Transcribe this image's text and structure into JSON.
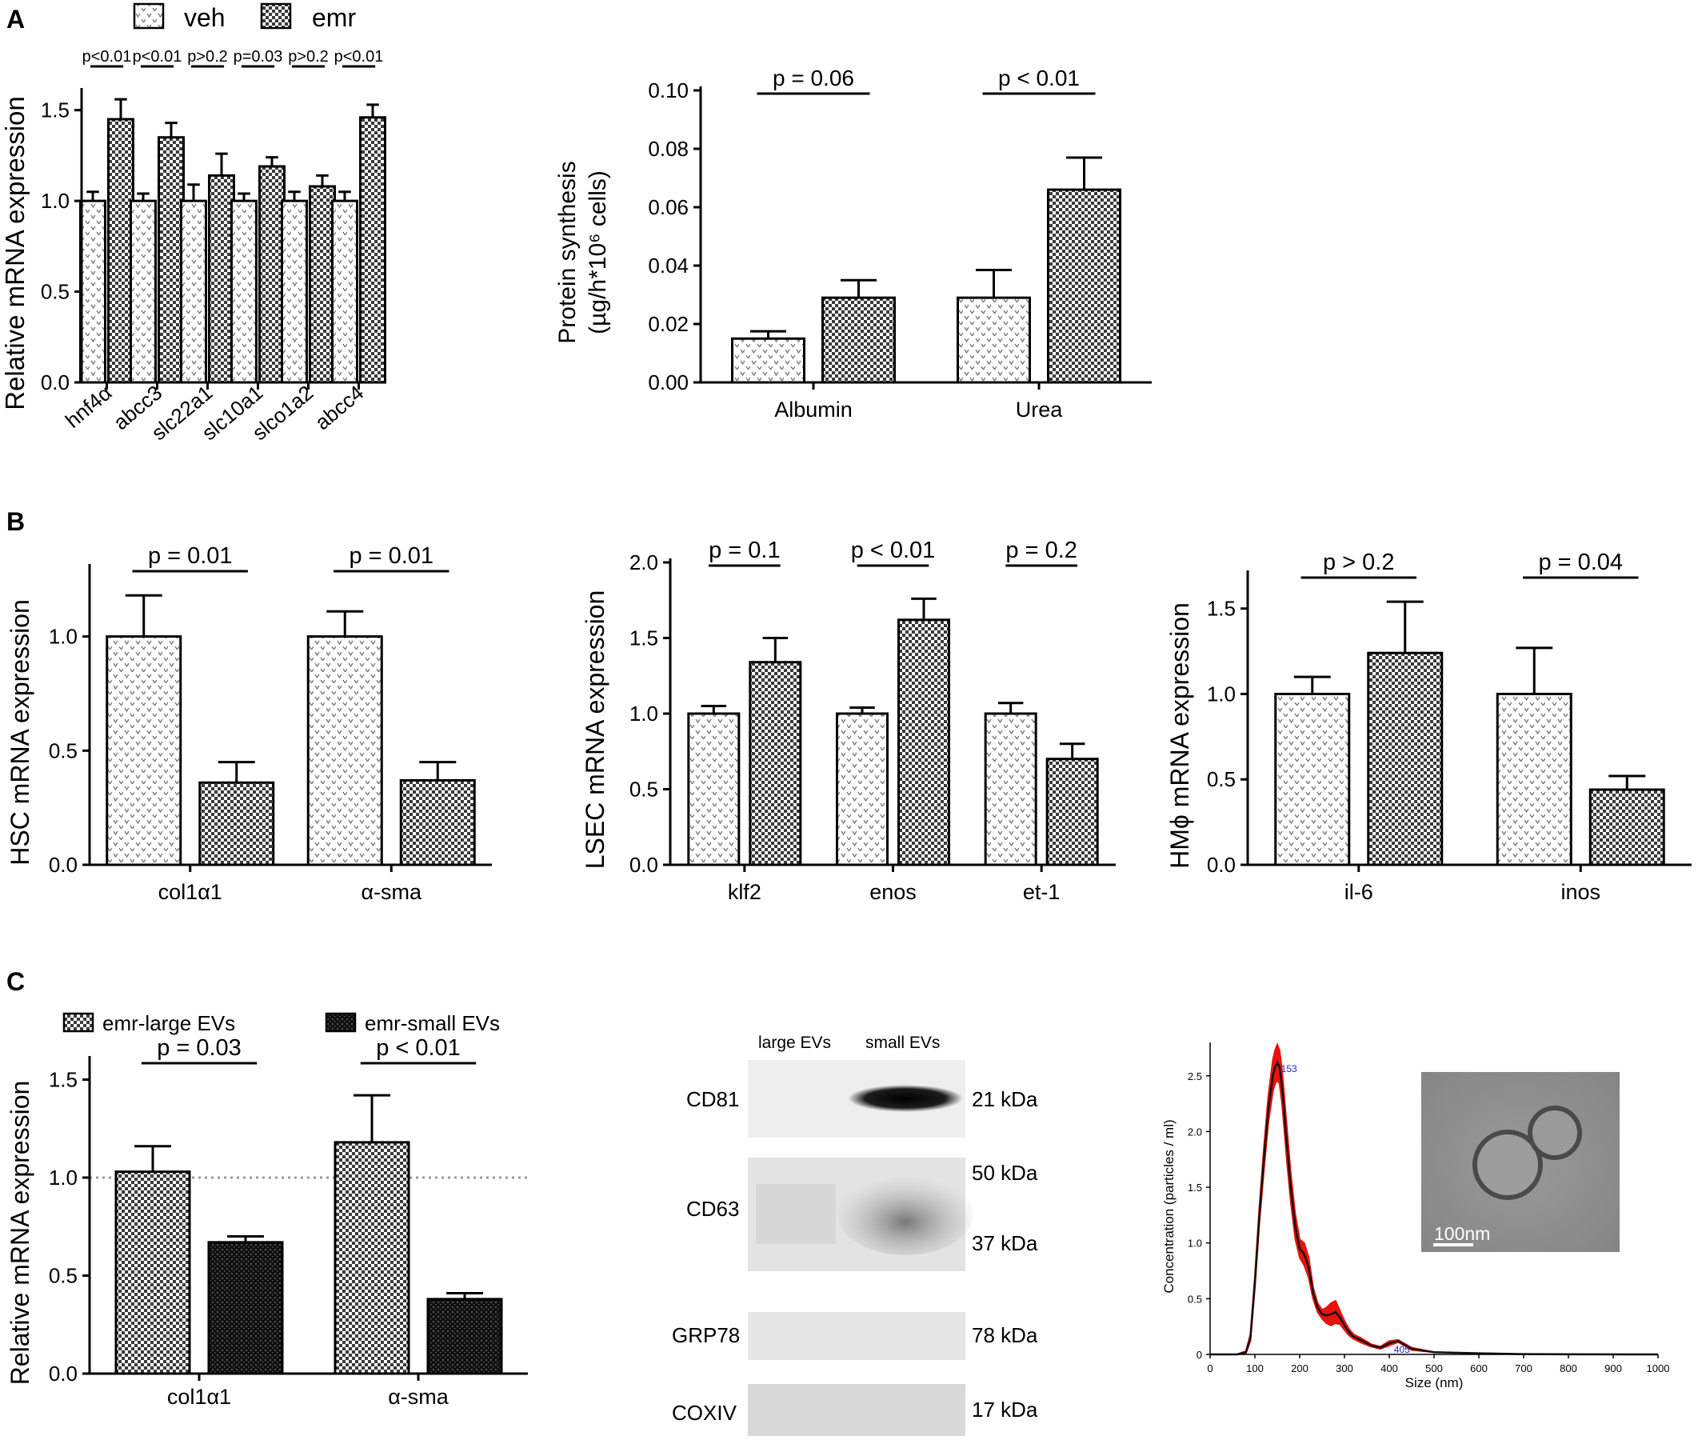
{
  "panel_labels": [
    "A",
    "B",
    "C"
  ],
  "legend_a": {
    "veh": "veh",
    "emr": "emr"
  },
  "legend_c": {
    "large": "emr-large EVs",
    "small": "emr-small EVs"
  },
  "chart_data": [
    {
      "id": "A1",
      "type": "bar",
      "ylabel": "Relative mRNA expression",
      "ylim": [
        0,
        1.6
      ],
      "yticks": [
        0.0,
        0.5,
        1.0,
        1.5
      ],
      "tick_labels": [
        "0.0",
        "0.5",
        "1.0",
        "1.5"
      ],
      "categories": [
        "hnf4α",
        "abcc3",
        "slc22a1",
        "slc10a1",
        "slco1a2",
        "abcc4"
      ],
      "series": [
        {
          "name": "veh",
          "values": [
            1.0,
            1.0,
            1.0,
            1.0,
            1.0,
            1.0
          ],
          "errors": [
            0.05,
            0.04,
            0.09,
            0.04,
            0.05,
            0.05
          ]
        },
        {
          "name": "emr",
          "values": [
            1.45,
            1.35,
            1.14,
            1.19,
            1.08,
            1.46
          ],
          "errors": [
            0.11,
            0.08,
            0.12,
            0.05,
            0.06,
            0.07
          ]
        }
      ],
      "pvalues": [
        "p<0.01",
        "p<0.01",
        "p>0.2",
        "p=0.03",
        "p>0.2",
        "p<0.01"
      ]
    },
    {
      "id": "A2",
      "type": "bar",
      "ylabel": "Protein synthesis",
      "ylabel2": "(µg/h*10⁶ cells)",
      "ylim": [
        0,
        0.1
      ],
      "yticks": [
        0,
        0.02,
        0.04,
        0.06,
        0.08,
        0.1
      ],
      "tick_labels": [
        "0.00",
        "0.02",
        "0.04",
        "0.06",
        "0.08",
        "0.10"
      ],
      "categories": [
        "Albumin",
        "Urea"
      ],
      "series": [
        {
          "name": "veh",
          "values": [
            0.015,
            0.029
          ],
          "errors": [
            0.0025,
            0.0095
          ]
        },
        {
          "name": "emr",
          "values": [
            0.029,
            0.066
          ],
          "errors": [
            0.006,
            0.011
          ]
        }
      ],
      "pvalues": [
        "p = 0.06",
        "p < 0.01"
      ]
    },
    {
      "id": "B1",
      "type": "bar",
      "ylabel": "HSC mRNA expression",
      "ylim": [
        0,
        1.3
      ],
      "yticks": [
        0,
        0.5,
        1.0
      ],
      "tick_labels": [
        "0.0",
        "0.5",
        "1.0"
      ],
      "categories": [
        "col1α1",
        "α-sma"
      ],
      "series": [
        {
          "name": "veh",
          "values": [
            1.0,
            1.0
          ],
          "errors": [
            0.18,
            0.11
          ]
        },
        {
          "name": "emr",
          "values": [
            0.36,
            0.37
          ],
          "errors": [
            0.09,
            0.08
          ]
        }
      ],
      "pvalues": [
        "p = 0.01",
        "p = 0.01"
      ]
    },
    {
      "id": "B2",
      "type": "bar",
      "ylabel": "LSEC mRNA expression",
      "ylim": [
        0,
        2.0
      ],
      "yticks": [
        0,
        0.5,
        1.0,
        1.5,
        2.0
      ],
      "tick_labels": [
        "0.0",
        "0.5",
        "1.0",
        "1.5",
        "2.0"
      ],
      "categories": [
        "klf2",
        "enos",
        "et-1"
      ],
      "series": [
        {
          "name": "veh",
          "values": [
            1.0,
            1.0,
            1.0
          ],
          "errors": [
            0.05,
            0.04,
            0.07
          ]
        },
        {
          "name": "emr",
          "values": [
            1.34,
            1.62,
            0.7
          ],
          "errors": [
            0.16,
            0.14,
            0.1
          ]
        }
      ],
      "pvalues": [
        "p = 0.1",
        "p < 0.01",
        "p = 0.2"
      ]
    },
    {
      "id": "B3",
      "type": "bar",
      "ylabel": "HMϕ mRNA expression",
      "ylim": [
        0,
        1.7
      ],
      "yticks": [
        0,
        0.5,
        1.0,
        1.5
      ],
      "tick_labels": [
        "0.0",
        "0.5",
        "1.0",
        "1.5"
      ],
      "categories": [
        "il-6",
        "inos"
      ],
      "series": [
        {
          "name": "veh",
          "values": [
            1.0,
            1.0
          ],
          "errors": [
            0.1,
            0.27
          ]
        },
        {
          "name": "emr",
          "values": [
            1.24,
            0.44
          ],
          "errors": [
            0.3,
            0.08
          ]
        }
      ],
      "pvalues": [
        "p > 0.2",
        "p = 0.04"
      ]
    },
    {
      "id": "C1",
      "type": "bar",
      "ylabel": "Relative mRNA expression",
      "ylim": [
        0,
        1.6
      ],
      "yticks": [
        0,
        0.5,
        1.0,
        1.5
      ],
      "tick_labels": [
        "0.0",
        "0.5",
        "1.0",
        "1.5"
      ],
      "reference_line": 1.0,
      "categories": [
        "col1α1",
        "α-sma"
      ],
      "series": [
        {
          "name": "emr-large EVs",
          "values": [
            1.03,
            1.18
          ],
          "errors": [
            0.13,
            0.24
          ]
        },
        {
          "name": "emr-small EVs",
          "values": [
            0.67,
            0.38
          ],
          "errors": [
            0.03,
            0.03
          ]
        }
      ],
      "pvalues": [
        "p = 0.03",
        "p < 0.01"
      ]
    },
    {
      "id": "C3",
      "type": "line",
      "xlabel": "Size (nm)",
      "ylabel": "Concentration (particles / ml)",
      "xlim": [
        0,
        1000
      ],
      "ylim": [
        0,
        2.8
      ],
      "xticks": [
        0,
        100,
        200,
        300,
        400,
        500,
        600,
        700,
        800,
        900,
        1000
      ],
      "xtick_labels": [
        "0",
        "100",
        "200",
        "300",
        "400",
        "500",
        "600",
        "700",
        "800",
        "900",
        "1000"
      ],
      "yticks": [
        0,
        0.5,
        1,
        1.5,
        2,
        2.5
      ],
      "ytick_labels": [
        "0",
        "0.5",
        "1.0",
        "1.5",
        "2.0",
        "2.5"
      ],
      "x": [
        0,
        60,
        80,
        90,
        100,
        110,
        120,
        130,
        140,
        145,
        150,
        155,
        160,
        165,
        170,
        180,
        190,
        200,
        210,
        220,
        230,
        240,
        250,
        260,
        270,
        280,
        290,
        300,
        310,
        320,
        340,
        360,
        380,
        400,
        420,
        450,
        500,
        600,
        700,
        800,
        1000
      ],
      "y": [
        0,
        0,
        0.02,
        0.15,
        0.65,
        1.25,
        1.75,
        2.2,
        2.5,
        2.58,
        2.62,
        2.58,
        2.42,
        2.2,
        1.95,
        1.5,
        1.15,
        0.95,
        0.9,
        0.78,
        0.55,
        0.42,
        0.36,
        0.35,
        0.36,
        0.38,
        0.33,
        0.26,
        0.2,
        0.16,
        0.12,
        0.08,
        0.06,
        0.1,
        0.12,
        0.05,
        0.02,
        0.01,
        0.003,
        0.001,
        0
      ],
      "band": [
        0,
        0,
        0.01,
        0.03,
        0.05,
        0.07,
        0.1,
        0.12,
        0.14,
        0.15,
        0.16,
        0.15,
        0.15,
        0.15,
        0.15,
        0.13,
        0.11,
        0.08,
        0.1,
        0.09,
        0.05,
        0.04,
        0.04,
        0.07,
        0.1,
        0.1,
        0.06,
        0.04,
        0.03,
        0.02,
        0.02,
        0.01,
        0.01,
        0.02,
        0.01,
        0.01,
        0,
        0,
        0,
        0,
        0
      ],
      "peaks": [
        {
          "x": 153,
          "y": 2.62,
          "label": "153"
        },
        {
          "x": 405,
          "y": 0.1,
          "label": "405"
        }
      ]
    }
  ],
  "western_blot": {
    "lanes": [
      "large EVs",
      "small EVs"
    ],
    "rows": [
      {
        "protein": "CD81",
        "markers": [
          "21 kDa"
        ]
      },
      {
        "protein": "CD63",
        "markers": [
          "50 kDa",
          "37 kDa"
        ]
      },
      {
        "protein": "GRP78",
        "markers": [
          "78 kDa"
        ]
      },
      {
        "protein": "COXIV",
        "markers": [
          "17 kDa"
        ]
      }
    ]
  },
  "tem_image": {
    "scale_label": "100nm"
  }
}
